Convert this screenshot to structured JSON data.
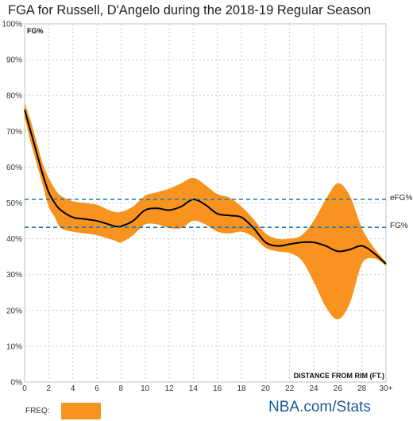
{
  "chart_data": {
    "type": "area",
    "title": "FGA for Russell, D'Angelo during the 2018-19 Regular Season",
    "xlabel": "DISTANCE FROM RIM (FT.)",
    "ylabel": "FG%",
    "xlim": [
      0,
      30
    ],
    "ylim": [
      0,
      100
    ],
    "x_ticks": [
      "0",
      "2",
      "4",
      "6",
      "8",
      "10",
      "12",
      "14",
      "16",
      "18",
      "20",
      "22",
      "24",
      "26",
      "28",
      "30+"
    ],
    "y_ticks": [
      "0%",
      "10%",
      "20%",
      "30%",
      "40%",
      "50%",
      "60%",
      "70%",
      "80%",
      "90%",
      "100%"
    ],
    "grid": true,
    "series": [
      {
        "name": "FG%",
        "x": [
          0,
          0.5,
          1,
          1.5,
          2,
          2.5,
          3,
          4,
          5,
          6,
          7,
          7.5,
          8,
          9,
          10,
          11,
          12,
          13,
          14,
          15,
          16,
          17,
          18,
          19,
          20,
          21,
          22,
          23,
          24,
          25,
          26,
          27,
          28,
          29,
          30
        ],
        "y": [
          76,
          70,
          64,
          58,
          53,
          50,
          48,
          46,
          45.5,
          45,
          44,
          43.5,
          43.5,
          45,
          48,
          48.5,
          48,
          49,
          51,
          49.5,
          47,
          46.5,
          46,
          43,
          39,
          38,
          38.5,
          39,
          39,
          38,
          36.5,
          37,
          38,
          36,
          33
        ]
      }
    ],
    "freq_band": {
      "x": [
        0,
        0.5,
        1,
        1.5,
        2,
        2.5,
        3,
        4,
        5,
        6,
        7,
        7.5,
        8,
        9,
        10,
        11,
        12,
        13,
        14,
        15,
        16,
        17,
        18,
        19,
        20,
        21,
        22,
        23,
        24,
        25,
        26,
        27,
        28,
        29,
        30
      ],
      "upper": [
        78,
        73,
        67,
        61,
        57,
        54,
        52,
        50.5,
        50,
        49.5,
        48,
        47.5,
        47.5,
        49,
        52,
        53,
        54,
        55.5,
        57,
        55,
        52.5,
        51.5,
        49,
        45.5,
        41.5,
        40,
        40,
        41,
        45,
        51,
        55.5,
        52,
        43,
        37.5,
        33.5
      ],
      "lower": [
        74,
        67,
        61,
        55,
        49,
        46,
        43,
        42,
        41.5,
        41,
        40,
        39.5,
        39,
        41,
        44,
        44,
        43,
        43,
        45,
        44,
        42,
        41.5,
        42,
        40.5,
        37.5,
        36.5,
        36,
        34,
        28,
        21,
        17.5,
        22,
        33,
        34.5,
        32.5
      ]
    },
    "reference_lines": [
      {
        "label": "eFG%",
        "value": 51,
        "color": "#1f77b4",
        "style": "dashed"
      },
      {
        "label": "FG%",
        "value": 43.2,
        "color": "#1f77b4",
        "style": "dashed"
      }
    ],
    "line_color": "#000000",
    "band_color": "#f7931e",
    "legend": {
      "label": "FREQ:",
      "color": "#f7931e",
      "placement": "bottom-left"
    }
  },
  "branding": {
    "text": "NBA.com/Stats",
    "color": "#1d5a99"
  }
}
